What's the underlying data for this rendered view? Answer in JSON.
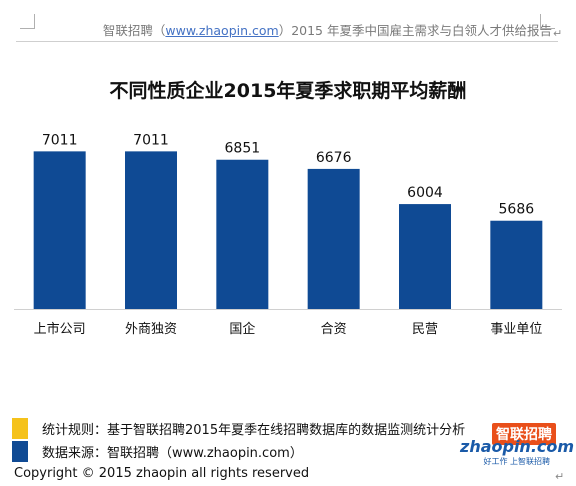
{
  "header": {
    "brand": "智联招聘（",
    "url": "www.zhaopin.com",
    "rest": "）2015 年夏季中国雇主需求与白领人才供给报告"
  },
  "chart_data": {
    "type": "bar",
    "title": "不同性质企业2015年夏季求职期平均薪酬",
    "categories": [
      "上市公司",
      "外商独资",
      "国企",
      "合资",
      "民营",
      "事业单位"
    ],
    "values": [
      7011,
      7011,
      6851,
      6676,
      6004,
      5686
    ],
    "ylim": [
      4000,
      7400
    ],
    "bar_color": "#0f4a94",
    "grid": false,
    "legend": "none"
  },
  "notes": {
    "rule": "统计规则：基于智联招聘2015年夏季在线招聘数据库的数据监测统计分析",
    "source": "数据来源：智联招聘（www.zhaopin.com）",
    "rule_color": "#f5c21b",
    "source_color": "#0f4a94"
  },
  "copyright": "Copyright  ©  2015 zhaopin all rights reserved",
  "logo": {
    "top": "智联招聘",
    "main": "zhaopin.com",
    "tagline": "好工作 上智联招聘"
  }
}
